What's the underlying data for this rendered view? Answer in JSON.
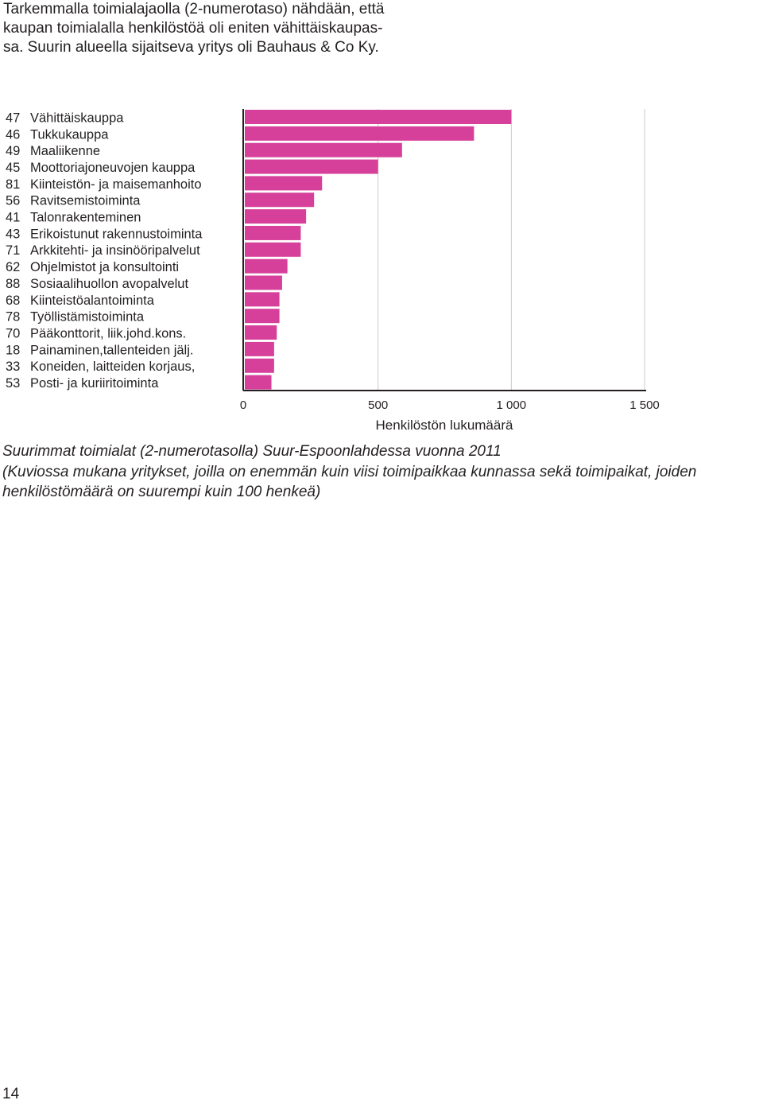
{
  "intro": {
    "lines": [
      "Tarkemmalla toimialajaolla (2-numerotaso) nähdään, että",
      "kaupan toimialalla henkilöstöä oli eniten vähittäiskaupas-",
      "sa. Suurin alueella sijaitseva yritys oli Bauhaus & Co Ky."
    ]
  },
  "chart_data": {
    "type": "bar",
    "orientation": "horizontal",
    "codes": [
      "47",
      "46",
      "49",
      "45",
      "81",
      "56",
      "41",
      "43",
      "71",
      "62",
      "88",
      "68",
      "78",
      "70",
      "18",
      "33",
      "53"
    ],
    "categories": [
      "Vähittäiskauppa",
      "Tukkukauppa",
      "Maaliikenne",
      "Moottoriajoneuvojen kauppa",
      "Kiinteistön- ja maisemanhoito",
      "Ravitsemistoiminta",
      "Talonrakenteminen",
      "Erikoistunut rakennustoiminta",
      "Arkkitehti- ja insinööripalvelut",
      "Ohjelmistot ja konsultointi",
      "Sosiaalihuollon avopalvelut",
      "Kiinteistöalantoiminta",
      "Työllistämistoiminta",
      "Pääkonttorit, liik.johd.kons.",
      "Painaminen,tallenteiden jälj.",
      "Koneiden, laitteiden korjaus,",
      "Posti- ja kuriiritoiminta"
    ],
    "values": [
      1000,
      860,
      590,
      500,
      290,
      260,
      230,
      210,
      210,
      160,
      140,
      130,
      130,
      120,
      110,
      110,
      100
    ],
    "xlim": [
      0,
      1500
    ],
    "xticks": [
      0,
      500,
      1000,
      1500
    ],
    "tick_labels": [
      "0",
      "500",
      "1 000",
      "1 500"
    ],
    "xlabel": "Henkilöstön lukumäärä",
    "ylabel": "",
    "title": "",
    "grid": "vertical",
    "legend": "none",
    "bar_color": "#d6409a"
  },
  "caption": {
    "title": "Suurimmat toimialat (2-numerotasolla) Suur-Espoonlahdessa vuonna 2011",
    "note_lines": [
      "(Kuviossa mukana yritykset, joilla on enemmän kuin viisi toimipaikkaa kunnassa sekä toimipaikat, joiden",
      "henkilöstömäärä on suurempi kuin 100 henkeä)"
    ]
  },
  "page": {
    "number": "14"
  }
}
